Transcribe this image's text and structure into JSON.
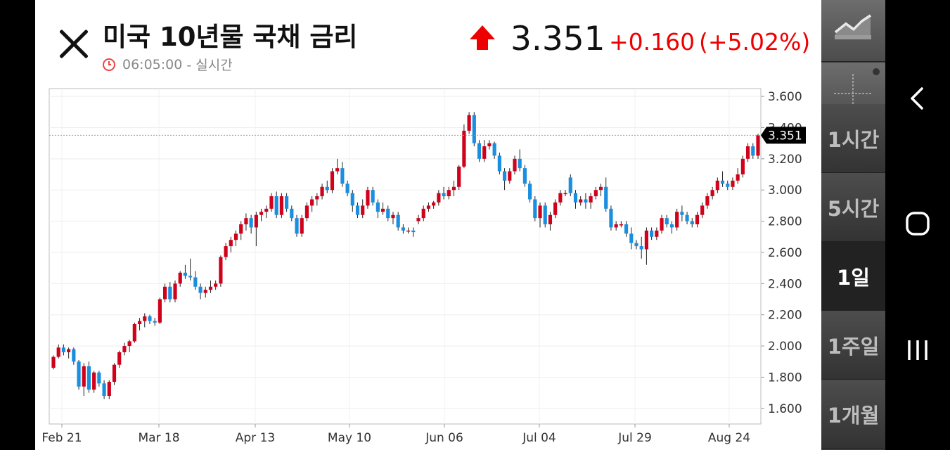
{
  "header": {
    "title": "미국 10년물 국채 금리",
    "time": "06:05:00",
    "time_suffix": "- 실시간",
    "price": "3.351",
    "change": "+0.160",
    "change_pct": "(+5.02%)",
    "up_color": "#e00000"
  },
  "sidebar": {
    "tools": [
      "line-chart-icon",
      "crosshair-icon"
    ],
    "timeframes": [
      {
        "label": "1시간",
        "active": false
      },
      {
        "label": "5시간",
        "active": false
      },
      {
        "label": "1일",
        "active": true
      },
      {
        "label": "1주일",
        "active": false
      },
      {
        "label": "1개월",
        "active": false
      }
    ]
  },
  "navbar": {
    "icons": [
      "back-icon",
      "home-icon",
      "recents-icon"
    ]
  },
  "chart_data": {
    "type": "candlestick",
    "title": "",
    "xlabel": "",
    "ylabel": "",
    "ylim": [
      1.5,
      3.65
    ],
    "y_ticks": [
      "3.600",
      "3.400",
      "3.200",
      "3.000",
      "2.800",
      "2.600",
      "2.400",
      "2.200",
      "2.000",
      "1.800",
      "1.600"
    ],
    "x_ticks": [
      "Feb 21",
      "Mar 18",
      "Apr 13",
      "May 10",
      "Jun 06",
      "Jul 04",
      "Jul 29",
      "Aug 24"
    ],
    "last_price_label": "3.351",
    "last_value": 3.351,
    "grid": true,
    "up_color": "#d0021b",
    "down_color": "#1a8fe0",
    "ohlc": [
      [
        1.86,
        1.94,
        1.85,
        1.93
      ],
      [
        1.93,
        2.01,
        1.92,
        1.99
      ],
      [
        1.99,
        2.01,
        1.94,
        1.96
      ],
      [
        1.96,
        1.99,
        1.92,
        1.98
      ],
      [
        1.98,
        1.99,
        1.88,
        1.9
      ],
      [
        1.9,
        1.91,
        1.72,
        1.74
      ],
      [
        1.74,
        1.89,
        1.68,
        1.87
      ],
      [
        1.87,
        1.9,
        1.7,
        1.72
      ],
      [
        1.72,
        1.84,
        1.7,
        1.83
      ],
      [
        1.83,
        1.84,
        1.74,
        1.76
      ],
      [
        1.76,
        1.78,
        1.66,
        1.68
      ],
      [
        1.68,
        1.78,
        1.66,
        1.77
      ],
      [
        1.77,
        1.89,
        1.75,
        1.88
      ],
      [
        1.88,
        1.97,
        1.86,
        1.96
      ],
      [
        1.96,
        2.02,
        1.94,
        2.0
      ],
      [
        2.0,
        2.04,
        1.96,
        2.03
      ],
      [
        2.03,
        2.15,
        2.02,
        2.14
      ],
      [
        2.14,
        2.18,
        2.1,
        2.16
      ],
      [
        2.16,
        2.21,
        2.12,
        2.19
      ],
      [
        2.19,
        2.2,
        2.14,
        2.16
      ],
      [
        2.16,
        2.18,
        2.13,
        2.15
      ],
      [
        2.15,
        2.31,
        2.14,
        2.3
      ],
      [
        2.3,
        2.4,
        2.28,
        2.38
      ],
      [
        2.38,
        2.41,
        2.28,
        2.3
      ],
      [
        2.3,
        2.42,
        2.28,
        2.4
      ],
      [
        2.4,
        2.48,
        2.38,
        2.47
      ],
      [
        2.47,
        2.52,
        2.43,
        2.45
      ],
      [
        2.45,
        2.56,
        2.42,
        2.44
      ],
      [
        2.44,
        2.48,
        2.36,
        2.38
      ],
      [
        2.38,
        2.4,
        2.3,
        2.34
      ],
      [
        2.34,
        2.38,
        2.31,
        2.36
      ],
      [
        2.36,
        2.42,
        2.34,
        2.38
      ],
      [
        2.38,
        2.42,
        2.36,
        2.4
      ],
      [
        2.4,
        2.58,
        2.38,
        2.57
      ],
      [
        2.57,
        2.66,
        2.55,
        2.64
      ],
      [
        2.64,
        2.7,
        2.6,
        2.68
      ],
      [
        2.68,
        2.74,
        2.64,
        2.72
      ],
      [
        2.72,
        2.8,
        2.68,
        2.78
      ],
      [
        2.78,
        2.85,
        2.74,
        2.82
      ],
      [
        2.82,
        2.84,
        2.72,
        2.76
      ],
      [
        2.76,
        2.86,
        2.64,
        2.84
      ],
      [
        2.84,
        2.88,
        2.8,
        2.86
      ],
      [
        2.86,
        2.9,
        2.82,
        2.88
      ],
      [
        2.88,
        2.98,
        2.86,
        2.96
      ],
      [
        2.96,
        2.99,
        2.82,
        2.84
      ],
      [
        2.84,
        2.98,
        2.82,
        2.96
      ],
      [
        2.96,
        2.98,
        2.86,
        2.88
      ],
      [
        2.88,
        2.9,
        2.8,
        2.82
      ],
      [
        2.82,
        2.84,
        2.7,
        2.72
      ],
      [
        2.72,
        2.84,
        2.7,
        2.82
      ],
      [
        2.82,
        2.92,
        2.8,
        2.9
      ],
      [
        2.9,
        2.96,
        2.86,
        2.94
      ],
      [
        2.94,
        2.98,
        2.9,
        2.96
      ],
      [
        2.96,
        3.04,
        2.94,
        3.02
      ],
      [
        3.02,
        3.06,
        2.98,
        3.0
      ],
      [
        3.0,
        3.14,
        2.98,
        3.12
      ],
      [
        3.12,
        3.2,
        3.1,
        3.14
      ],
      [
        3.14,
        3.18,
        3.02,
        3.04
      ],
      [
        3.04,
        3.06,
        2.96,
        2.98
      ],
      [
        2.98,
        3.0,
        2.86,
        2.9
      ],
      [
        2.9,
        2.92,
        2.82,
        2.84
      ],
      [
        2.84,
        2.94,
        2.82,
        2.9
      ],
      [
        2.9,
        3.02,
        2.88,
        3.0
      ],
      [
        3.0,
        3.02,
        2.9,
        2.92
      ],
      [
        2.92,
        2.94,
        2.82,
        2.86
      ],
      [
        2.86,
        2.92,
        2.84,
        2.88
      ],
      [
        2.88,
        2.9,
        2.8,
        2.82
      ],
      [
        2.82,
        2.86,
        2.78,
        2.84
      ],
      [
        2.84,
        2.86,
        2.74,
        2.76
      ],
      [
        2.76,
        2.78,
        2.72,
        2.74
      ],
      [
        2.74,
        2.76,
        2.72,
        2.74
      ],
      [
        2.74,
        2.76,
        2.7,
        2.73
      ],
      [
        2.8,
        2.84,
        2.78,
        2.82
      ],
      [
        2.82,
        2.9,
        2.8,
        2.88
      ],
      [
        2.88,
        2.92,
        2.86,
        2.9
      ],
      [
        2.9,
        2.93,
        2.88,
        2.92
      ],
      [
        2.92,
        3.0,
        2.9,
        2.98
      ],
      [
        2.98,
        3.02,
        2.94,
        2.96
      ],
      [
        2.96,
        3.02,
        2.94,
        3.0
      ],
      [
        3.0,
        3.06,
        2.96,
        3.02
      ],
      [
        3.02,
        3.16,
        3.0,
        3.15
      ],
      [
        3.15,
        3.42,
        3.14,
        3.38
      ],
      [
        3.38,
        3.5,
        3.36,
        3.48
      ],
      [
        3.48,
        3.5,
        3.28,
        3.3
      ],
      [
        3.3,
        3.32,
        3.18,
        3.2
      ],
      [
        3.2,
        3.32,
        3.18,
        3.28
      ],
      [
        3.28,
        3.32,
        3.26,
        3.3
      ],
      [
        3.3,
        3.31,
        3.2,
        3.22
      ],
      [
        3.22,
        3.24,
        3.1,
        3.12
      ],
      [
        3.12,
        3.14,
        3.0,
        3.06
      ],
      [
        3.06,
        3.14,
        3.04,
        3.12
      ],
      [
        3.12,
        3.22,
        3.1,
        3.2
      ],
      [
        3.2,
        3.26,
        3.12,
        3.14
      ],
      [
        3.14,
        3.16,
        3.02,
        3.04
      ],
      [
        3.04,
        3.06,
        2.92,
        2.94
      ],
      [
        2.94,
        2.96,
        2.8,
        2.82
      ],
      [
        2.82,
        2.92,
        2.76,
        2.9
      ],
      [
        2.9,
        2.92,
        2.76,
        2.78
      ],
      [
        2.78,
        2.86,
        2.74,
        2.84
      ],
      [
        2.84,
        2.94,
        2.82,
        2.92
      ],
      [
        2.92,
        3.0,
        2.9,
        2.98
      ],
      [
        2.98,
        3.0,
        2.96,
        2.98
      ],
      [
        3.08,
        3.1,
        2.96,
        2.98
      ],
      [
        2.98,
        3.0,
        2.88,
        2.92
      ],
      [
        2.92,
        2.96,
        2.9,
        2.94
      ],
      [
        2.94,
        2.98,
        2.88,
        2.92
      ],
      [
        2.92,
        2.98,
        2.88,
        2.96
      ],
      [
        2.96,
        3.02,
        2.94,
        3.0
      ],
      [
        3.0,
        3.04,
        2.96,
        3.02
      ],
      [
        3.02,
        3.08,
        2.86,
        2.88
      ],
      [
        2.88,
        2.9,
        2.74,
        2.76
      ],
      [
        2.76,
        2.8,
        2.74,
        2.78
      ],
      [
        2.78,
        2.8,
        2.76,
        2.78
      ],
      [
        2.78,
        2.8,
        2.7,
        2.72
      ],
      [
        2.72,
        2.76,
        2.62,
        2.66
      ],
      [
        2.66,
        2.68,
        2.62,
        2.64
      ],
      [
        2.64,
        2.7,
        2.56,
        2.62
      ],
      [
        2.62,
        2.76,
        2.52,
        2.74
      ],
      [
        2.74,
        2.76,
        2.68,
        2.7
      ],
      [
        2.7,
        2.76,
        2.68,
        2.74
      ],
      [
        2.74,
        2.84,
        2.72,
        2.82
      ],
      [
        2.82,
        2.84,
        2.76,
        2.78
      ],
      [
        2.78,
        2.8,
        2.72,
        2.76
      ],
      [
        2.76,
        2.88,
        2.74,
        2.86
      ],
      [
        2.86,
        2.9,
        2.8,
        2.84
      ],
      [
        2.84,
        2.86,
        2.78,
        2.8
      ],
      [
        2.8,
        2.82,
        2.76,
        2.78
      ],
      [
        2.78,
        2.86,
        2.76,
        2.84
      ],
      [
        2.84,
        2.92,
        2.82,
        2.9
      ],
      [
        2.9,
        2.98,
        2.88,
        2.96
      ],
      [
        2.96,
        3.02,
        2.94,
        3.0
      ],
      [
        3.0,
        3.08,
        2.98,
        3.06
      ],
      [
        3.06,
        3.12,
        3.02,
        3.04
      ],
      [
        3.04,
        3.06,
        3.0,
        3.02
      ],
      [
        3.02,
        3.08,
        3.0,
        3.06
      ],
      [
        3.06,
        3.14,
        3.04,
        3.1
      ],
      [
        3.1,
        3.22,
        3.08,
        3.2
      ],
      [
        3.2,
        3.3,
        3.18,
        3.28
      ],
      [
        3.28,
        3.3,
        3.2,
        3.22
      ],
      [
        3.22,
        3.36,
        3.2,
        3.351
      ]
    ]
  }
}
